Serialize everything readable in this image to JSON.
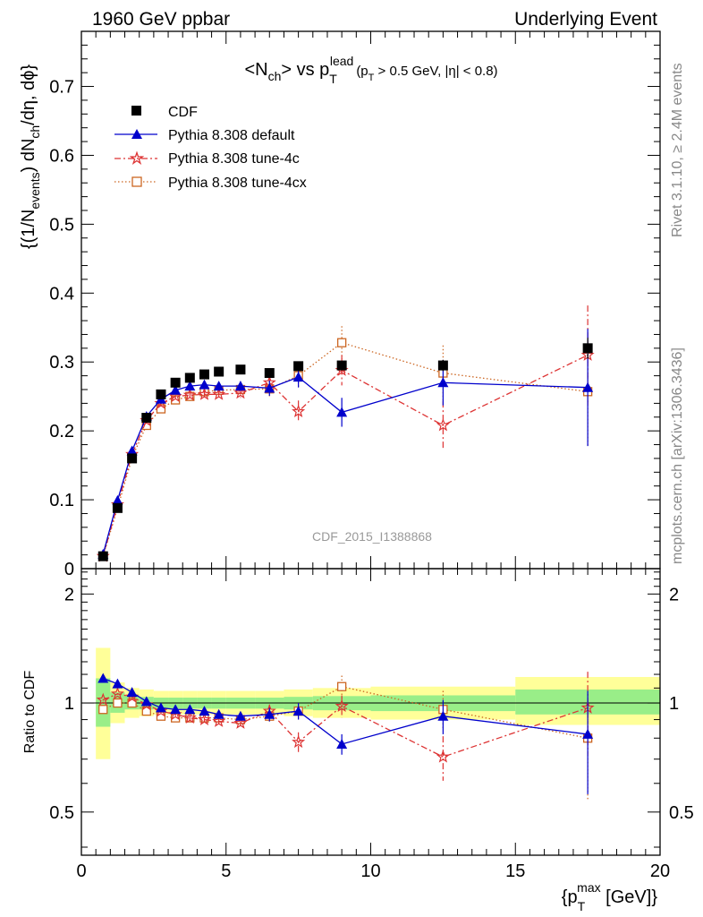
{
  "header": {
    "left": "1960 GeV ppbar",
    "right": "Underlying Event"
  },
  "side_labels": {
    "rivet": "Rivet 3.1.10, ≥ 2.4M events",
    "mcplots": "mcplots.cern.ch [arXiv:1306.3436]"
  },
  "watermark": "CDF_2015_I1388868",
  "chart_data": [
    {
      "type": "scatter",
      "title_parts": {
        "a": "<N",
        "a_sub": "ch",
        "b": "> vs p",
        "b_sub": "T",
        "b_sup": "lead",
        "c": "(p",
        "c_sub": "T",
        "d": " > 0.5 GeV, |η| < 0.8)"
      },
      "ylabel_parts": {
        "a": "{(1/N",
        "a_sub": "events",
        "b": ") dN",
        "b_sub": "ch",
        "c": "/dη, dϕ}"
      },
      "xlim": [
        0,
        20
      ],
      "ylim": [
        0,
        0.78
      ],
      "yticks": [
        0,
        0.1,
        0.2,
        0.3,
        0.4,
        0.5,
        0.6,
        0.7
      ],
      "ytick_labels": [
        "0",
        "0.1",
        "0.2",
        "0.3",
        "0.4",
        "0.5",
        "0.6",
        "0.7"
      ],
      "legend_position": "top-left",
      "series": [
        {
          "name": "CDF",
          "color": "#000000",
          "marker": "square",
          "x": [
            0.75,
            1.25,
            1.75,
            2.25,
            2.75,
            3.25,
            3.75,
            4.25,
            4.75,
            5.5,
            6.5,
            7.5,
            9.0,
            12.5,
            17.5
          ],
          "y": [
            0.018,
            0.088,
            0.16,
            0.219,
            0.253,
            0.27,
            0.277,
            0.282,
            0.286,
            0.289,
            0.284,
            0.294,
            0.295,
            0.295,
            0.32
          ],
          "err": [
            0.001,
            0.003,
            0.004,
            0.004,
            0.004,
            0.004,
            0.004,
            0.004,
            0.004,
            0.004,
            0.005,
            0.005,
            0.006,
            0.008,
            0.015
          ]
        },
        {
          "name": "Pythia 8.308 default",
          "color": "#0000cc",
          "marker": "triangle",
          "line": "solid",
          "x": [
            0.75,
            1.25,
            1.75,
            2.25,
            2.75,
            3.25,
            3.75,
            4.25,
            4.75,
            5.5,
            6.5,
            7.5,
            9.0,
            12.5,
            17.5
          ],
          "y": [
            0.021,
            0.099,
            0.171,
            0.221,
            0.246,
            0.259,
            0.265,
            0.267,
            0.265,
            0.265,
            0.262,
            0.278,
            0.227,
            0.27,
            0.263
          ],
          "err": [
            0.001,
            0.002,
            0.003,
            0.004,
            0.005,
            0.005,
            0.005,
            0.006,
            0.006,
            0.007,
            0.011,
            0.015,
            0.021,
            0.033,
            0.085
          ]
        },
        {
          "name": "Pythia 8.308 tune-4c",
          "color": "#dd3333",
          "marker": "star",
          "line": "dashdot",
          "x": [
            0.75,
            1.25,
            1.75,
            2.25,
            2.75,
            3.25,
            3.75,
            4.25,
            4.75,
            5.5,
            6.5,
            7.5,
            9.0,
            12.5,
            17.5
          ],
          "y": [
            0.018,
            0.093,
            0.166,
            0.215,
            0.24,
            0.25,
            0.252,
            0.253,
            0.253,
            0.255,
            0.27,
            0.228,
            0.288,
            0.208,
            0.31
          ],
          "err": [
            0.001,
            0.002,
            0.003,
            0.004,
            0.005,
            0.005,
            0.005,
            0.006,
            0.006,
            0.007,
            0.011,
            0.016,
            0.022,
            0.035,
            0.072
          ]
        },
        {
          "name": "Pythia 8.308 tune-4cx",
          "color": "#cc6622",
          "marker": "open-square",
          "line": "dotted",
          "x": [
            0.75,
            1.25,
            1.75,
            2.25,
            2.75,
            3.25,
            3.75,
            4.25,
            4.75,
            5.5,
            6.5,
            7.5,
            9.0,
            12.5,
            17.5
          ],
          "y": [
            0.018,
            0.088,
            0.161,
            0.208,
            0.232,
            0.245,
            0.25,
            0.257,
            0.259,
            0.26,
            0.261,
            0.28,
            0.328,
            0.284,
            0.257
          ],
          "err": [
            0.001,
            0.002,
            0.003,
            0.004,
            0.005,
            0.005,
            0.005,
            0.006,
            0.006,
            0.007,
            0.012,
            0.017,
            0.024,
            0.04,
            0.08
          ]
        }
      ]
    },
    {
      "type": "scatter",
      "ylabel": "Ratio to CDF",
      "xlabel_parts": {
        "a": "{p",
        "a_sub": "T",
        "a_sup": "max",
        "b": " [GeV]}"
      },
      "xlim": [
        0,
        20
      ],
      "ylim": [
        0.38,
        2.35
      ],
      "y_scale": "log",
      "yticks": [
        0.5,
        1,
        2
      ],
      "ytick_labels": [
        "0.5",
        "1",
        "2"
      ],
      "xticks": [
        0,
        5,
        10,
        15,
        20
      ],
      "xtick_labels": [
        "0",
        "5",
        "10",
        "15",
        "20"
      ],
      "reference_line": 1,
      "uncertainty_bands": [
        {
          "x0": 0.5,
          "x1": 1.0,
          "yellow": [
            0.7,
            1.42
          ],
          "green": [
            0.86,
            1.17
          ]
        },
        {
          "x0": 1.0,
          "x1": 1.5,
          "yellow": [
            0.88,
            1.14
          ],
          "green": [
            0.94,
            1.07
          ]
        },
        {
          "x0": 1.5,
          "x1": 2.0,
          "yellow": [
            0.91,
            1.1
          ],
          "green": [
            0.96,
            1.05
          ]
        },
        {
          "x0": 2.0,
          "x1": 2.5,
          "yellow": [
            0.92,
            1.09
          ],
          "green": [
            0.96,
            1.04
          ]
        },
        {
          "x0": 2.5,
          "x1": 3.0,
          "yellow": [
            0.93,
            1.08
          ],
          "green": [
            0.965,
            1.035
          ]
        },
        {
          "x0": 3.0,
          "x1": 3.5,
          "yellow": [
            0.93,
            1.08
          ],
          "green": [
            0.965,
            1.035
          ]
        },
        {
          "x0": 3.5,
          "x1": 4.0,
          "yellow": [
            0.93,
            1.08
          ],
          "green": [
            0.965,
            1.035
          ]
        },
        {
          "x0": 4.0,
          "x1": 4.5,
          "yellow": [
            0.93,
            1.08
          ],
          "green": [
            0.965,
            1.035
          ]
        },
        {
          "x0": 4.5,
          "x1": 5.0,
          "yellow": [
            0.93,
            1.08
          ],
          "green": [
            0.965,
            1.035
          ]
        },
        {
          "x0": 5.0,
          "x1": 6.0,
          "yellow": [
            0.93,
            1.08
          ],
          "green": [
            0.965,
            1.035
          ]
        },
        {
          "x0": 6.0,
          "x1": 7.0,
          "yellow": [
            0.93,
            1.08
          ],
          "green": [
            0.965,
            1.035
          ]
        },
        {
          "x0": 7.0,
          "x1": 8.0,
          "yellow": [
            0.92,
            1.09
          ],
          "green": [
            0.96,
            1.04
          ]
        },
        {
          "x0": 8.0,
          "x1": 10.0,
          "yellow": [
            0.91,
            1.1
          ],
          "green": [
            0.955,
            1.045
          ]
        },
        {
          "x0": 10.0,
          "x1": 15.0,
          "yellow": [
            0.9,
            1.11
          ],
          "green": [
            0.95,
            1.05
          ]
        },
        {
          "x0": 15.0,
          "x1": 20.0,
          "yellow": [
            0.87,
            1.18
          ],
          "green": [
            0.93,
            1.09
          ]
        }
      ],
      "series": [
        {
          "name": "Pythia 8.308 default",
          "color": "#0000cc",
          "marker": "triangle",
          "line": "solid",
          "x": [
            0.75,
            1.25,
            1.75,
            2.25,
            2.75,
            3.25,
            3.75,
            4.25,
            4.75,
            5.5,
            6.5,
            7.5,
            9.0,
            12.5,
            17.5
          ],
          "y": [
            1.17,
            1.13,
            1.07,
            1.01,
            0.97,
            0.96,
            0.96,
            0.95,
            0.93,
            0.92,
            0.93,
            0.95,
            0.77,
            0.92,
            0.82
          ],
          "err": [
            0.005,
            0.005,
            0.01,
            0.01,
            0.01,
            0.01,
            0.015,
            0.015,
            0.02,
            0.02,
            0.04,
            0.05,
            0.05,
            0.1,
            0.26
          ]
        },
        {
          "name": "Pythia 8.308 tune-4c",
          "color": "#dd3333",
          "marker": "star",
          "line": "dashdot",
          "x": [
            0.75,
            1.25,
            1.75,
            2.25,
            2.75,
            3.25,
            3.75,
            4.25,
            4.75,
            5.5,
            6.5,
            7.5,
            9.0,
            12.5,
            17.5
          ],
          "y": [
            1.02,
            1.06,
            1.04,
            0.99,
            0.95,
            0.93,
            0.91,
            0.9,
            0.89,
            0.88,
            0.95,
            0.78,
            0.98,
            0.71,
            0.97
          ],
          "err": [
            0.005,
            0.005,
            0.01,
            0.01,
            0.01,
            0.01,
            0.015,
            0.015,
            0.02,
            0.02,
            0.04,
            0.05,
            0.07,
            0.1,
            0.25
          ]
        },
        {
          "name": "Pythia 8.308 tune-4cx",
          "color": "#cc6622",
          "marker": "open-square",
          "line": "dotted",
          "x": [
            0.75,
            1.25,
            1.75,
            2.25,
            2.75,
            3.25,
            3.75,
            4.25,
            4.75,
            5.5,
            6.5,
            7.5,
            9.0,
            12.5,
            17.5
          ],
          "y": [
            0.96,
            1.0,
            1.0,
            0.95,
            0.92,
            0.91,
            0.91,
            0.91,
            0.91,
            0.9,
            0.92,
            0.95,
            1.11,
            0.96,
            0.8
          ],
          "err": [
            0.005,
            0.005,
            0.01,
            0.01,
            0.01,
            0.01,
            0.015,
            0.015,
            0.02,
            0.02,
            0.04,
            0.05,
            0.08,
            0.12,
            0.26
          ]
        }
      ]
    }
  ]
}
